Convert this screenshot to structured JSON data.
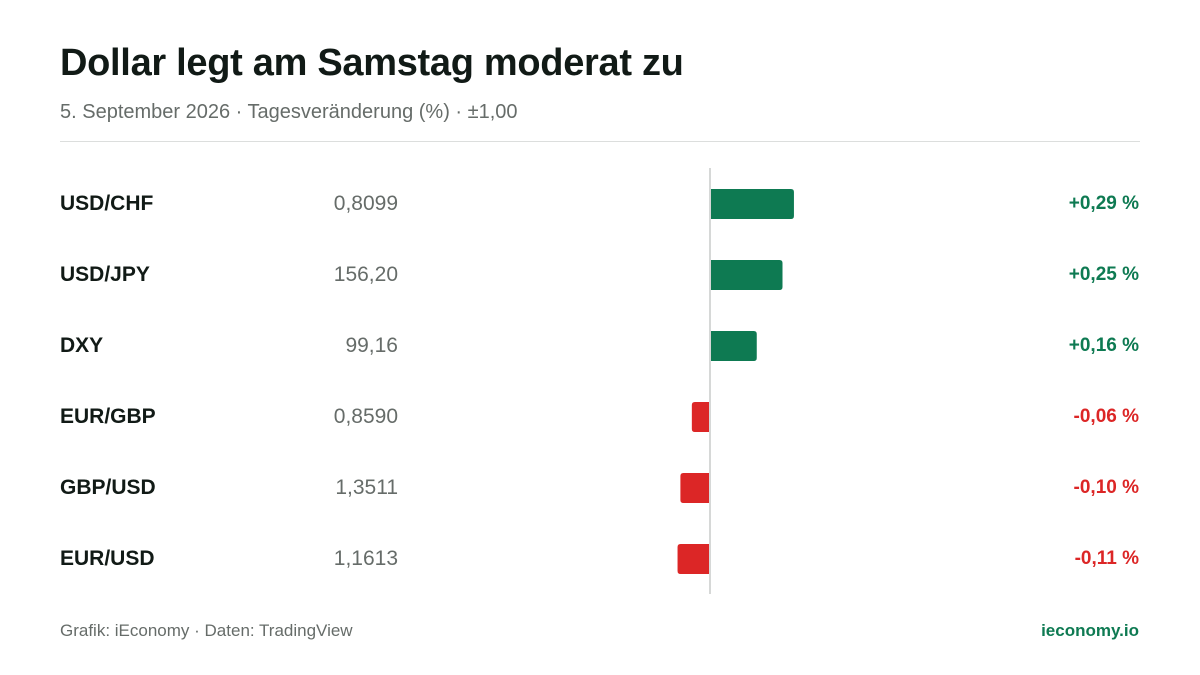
{
  "header": {
    "title": "Dollar legt am Samstag moderat zu",
    "subtitle": "5. September 2026 · Tagesveränderung (%) · ±1,00"
  },
  "colors": {
    "positive": "#0e7a52",
    "negative": "#dc2626",
    "axis": "#d6d8d7"
  },
  "chart_data": {
    "type": "bar",
    "orientation": "horizontal",
    "categories": [
      "USD/CHF",
      "USD/JPY",
      "DXY",
      "EUR/GBP",
      "GBP/USD",
      "EUR/USD"
    ],
    "quotes": [
      "0,8099",
      "156,20",
      "99,16",
      "0,8590",
      "1,3511",
      "1,1613"
    ],
    "values": [
      0.29,
      0.25,
      0.16,
      -0.06,
      -0.1,
      -0.11
    ],
    "value_labels": [
      "+0,29 %",
      "+0,25 %",
      "+0,16 %",
      "-0,06 %",
      "-0,10 %",
      "-0,11 %"
    ],
    "xlim": [
      -1,
      1
    ],
    "grid": false,
    "legend": "none"
  },
  "footer": {
    "source": "Grafik: iEconomy · Daten: TradingView",
    "brand": "ieconomy.io"
  }
}
